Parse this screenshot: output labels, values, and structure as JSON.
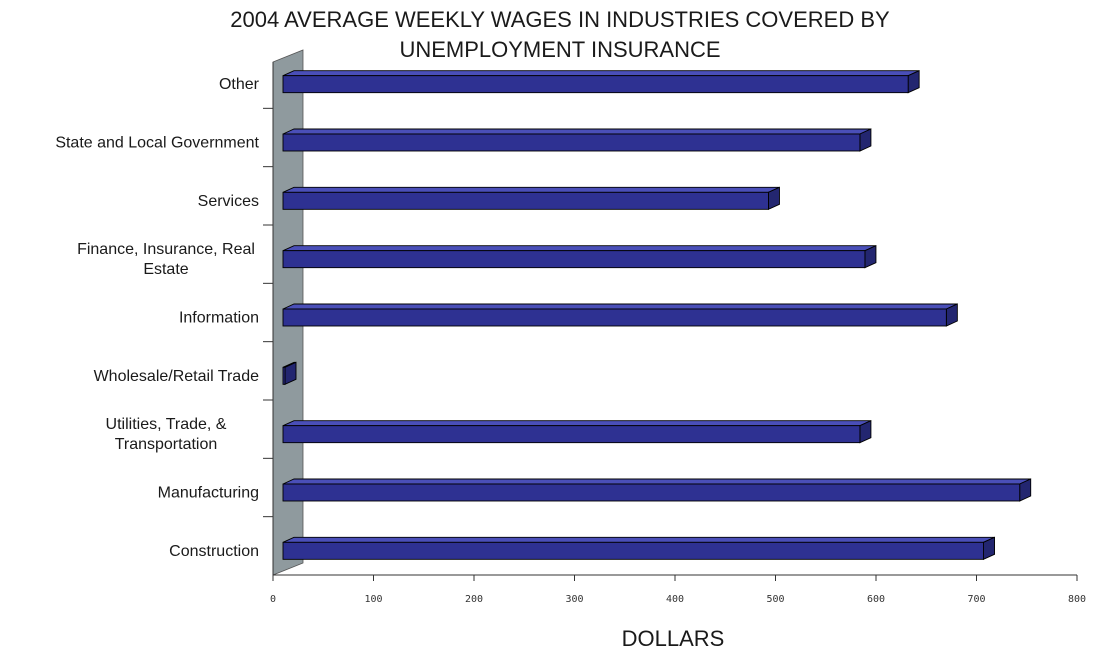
{
  "chart_data": {
    "type": "bar",
    "orientation": "horizontal",
    "title_lines": [
      "2004 AVERAGE WEEKLY WAGES IN INDUSTRIES COVERED BY",
      "UNEMPLOYMENT INSURANCE"
    ],
    "xlabel": "DOLLARS",
    "ylabel": "",
    "xlim": [
      0,
      800
    ],
    "ticks": [
      "0",
      "100",
      "200",
      "300",
      "400",
      "500",
      "600",
      "700",
      "800"
    ],
    "categories": [
      [
        "Other"
      ],
      [
        "State and Local Government"
      ],
      [
        "Services"
      ],
      [
        "Finance, Insurance, Real",
        "Estate"
      ],
      [
        "Information"
      ],
      [
        "Wholesale/Retail Trade"
      ],
      [
        "Utilities, Trade, &",
        "Transportation"
      ],
      [
        "Manufacturing"
      ],
      [
        "Construction"
      ]
    ],
    "values": [
      632,
      584,
      493,
      589,
      670,
      0,
      584,
      743,
      707
    ],
    "grid": false,
    "style": "3d",
    "colors": {
      "bar_front": "#2e3192",
      "bar_top": "#4a4fb8",
      "bar_side": "#232670",
      "wall": "#8f9a9e"
    }
  }
}
